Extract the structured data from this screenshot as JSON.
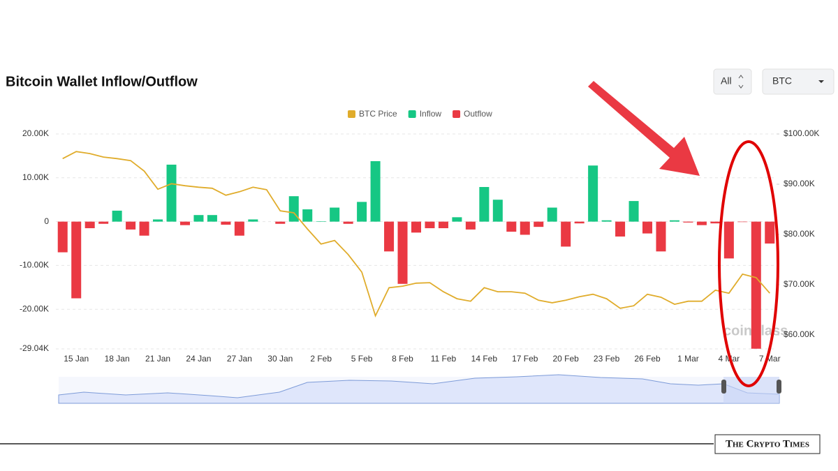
{
  "title": "Bitcoin Wallet Inflow/Outflow",
  "range_select": "All",
  "coin_select": "BTC",
  "watermark": "coinglass",
  "brand": "The Crypto Times",
  "chart_data": {
    "type": "bar",
    "categories": [
      null,
      "15 Jan",
      null,
      null,
      "18 Jan",
      null,
      null,
      "21 Jan",
      null,
      null,
      "24 Jan",
      null,
      null,
      "27 Jan",
      null,
      null,
      "30 Jan",
      null,
      null,
      "2 Feb",
      null,
      null,
      "5 Feb",
      null,
      null,
      "8 Feb",
      null,
      null,
      "11 Feb",
      null,
      null,
      "14 Feb",
      null,
      null,
      "17 Feb",
      null,
      null,
      "20 Feb",
      null,
      null,
      "23 Feb",
      null,
      null,
      "26 Feb",
      null,
      null,
      "1 Mar",
      null,
      null,
      "4 Mar",
      null,
      null,
      "7 Mar"
    ],
    "series": [
      {
        "name": "BTC Price",
        "type": "line",
        "axis": "y2",
        "color": "#e0ac2b",
        "values": [
          95100,
          96500,
          96100,
          95400,
          95100,
          94700,
          92600,
          89000,
          90100,
          89700,
          89400,
          89200,
          87800,
          88500,
          89400,
          88900,
          84700,
          84300,
          81100,
          78100,
          78800,
          76000,
          72500,
          63800,
          69400,
          69700,
          70300,
          70400,
          68600,
          67200,
          66700,
          69400,
          68600,
          68600,
          68300,
          66900,
          66400,
          66900,
          67600,
          68100,
          67200,
          65300,
          65800,
          68100,
          67500,
          66100,
          66700,
          66700,
          68900,
          68300,
          72100,
          71400,
          68300
        ]
      },
      {
        "name": "Inflow",
        "type": "bar",
        "color": "#16c784",
        "values": [
          null,
          null,
          null,
          null,
          2500,
          null,
          null,
          500,
          13000,
          null,
          1500,
          1500,
          null,
          null,
          500,
          null,
          null,
          5800,
          2800,
          100,
          3200,
          null,
          4500,
          13800,
          null,
          null,
          null,
          null,
          null,
          1000,
          null,
          7900,
          5000,
          null,
          null,
          null,
          3200,
          null,
          null,
          12800,
          300,
          null,
          4700,
          null,
          null,
          300,
          null,
          null,
          null,
          null,
          null,
          null,
          null
        ]
      },
      {
        "name": "Outflow",
        "type": "bar",
        "color": "#ea3943",
        "values": [
          -7000,
          -17500,
          -1500,
          -500,
          null,
          -1800,
          -3200,
          null,
          null,
          -800,
          null,
          null,
          -700,
          -3200,
          null,
          null,
          -500,
          null,
          null,
          null,
          null,
          -500,
          null,
          null,
          -6800,
          -14200,
          -2500,
          -1500,
          -1500,
          null,
          -1800,
          null,
          null,
          -2300,
          -3000,
          -1200,
          null,
          -5700,
          -400,
          null,
          null,
          -3400,
          null,
          -2700,
          -6800,
          null,
          -200,
          -800,
          -400,
          -8400,
          -100,
          -29000,
          -5000
        ]
      }
    ],
    "ylim": [
      -29040,
      20000
    ],
    "yticks": [
      {
        "value": -29040,
        "label": "-29.04K"
      },
      {
        "value": -20000,
        "label": "-20.00K"
      },
      {
        "value": -10000,
        "label": "-10.00K"
      },
      0,
      {
        "value": 10000,
        "label": "10.00K"
      },
      {
        "value": 20000,
        "label": "20.00K"
      }
    ],
    "y2lim": [
      57220,
      100000
    ],
    "y2ticks": [
      {
        "value": 60000,
        "label": "$60.00K"
      },
      {
        "value": 70000,
        "label": "$70.00K"
      },
      {
        "value": 80000,
        "label": "$80.00K"
      },
      {
        "value": 90000,
        "label": "$90.00K"
      },
      {
        "value": 100000,
        "label": "$100.00K"
      }
    ],
    "grid": true
  }
}
